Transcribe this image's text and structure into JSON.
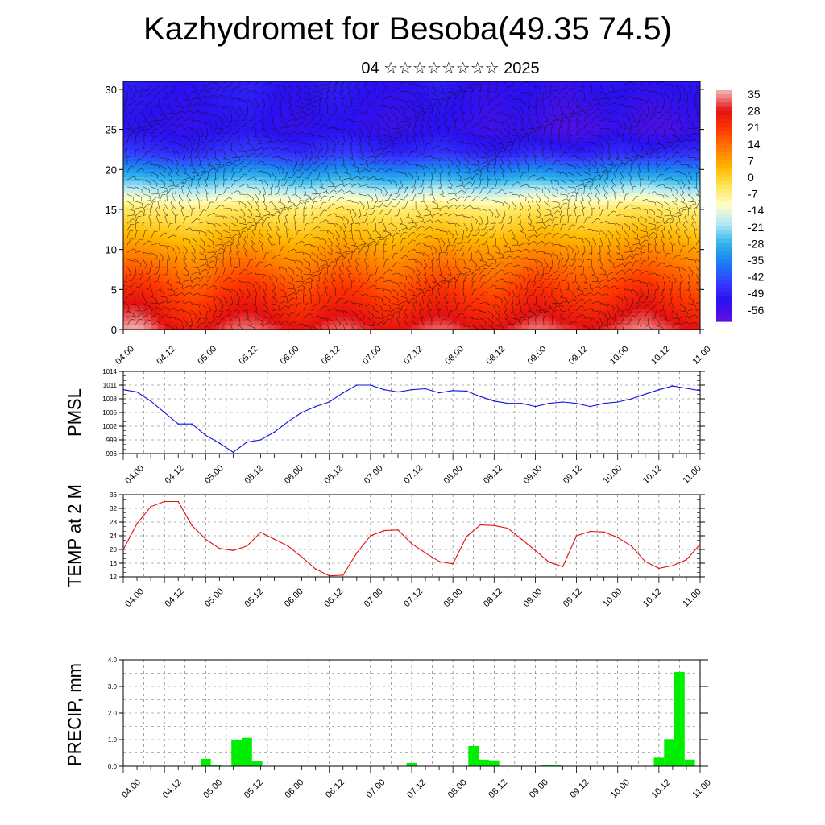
{
  "page": {
    "title": "Kazhydromet for Besoba(49.35 74.5)",
    "subtitle": "04 ☆☆☆☆☆☆☆☆ 2025"
  },
  "chart_data": [
    {
      "type": "heatmap",
      "title": "",
      "x_tick_labels": [
        "04.00",
        "04.12",
        "05.00",
        "05.12",
        "06.00",
        "06.12",
        "07.00",
        "07.12",
        "08.00",
        "08.12",
        "09.00",
        "09.12",
        "10.00",
        "10.12",
        "11.00"
      ],
      "x_range": [
        0,
        168
      ],
      "y_ticks": [
        0,
        5,
        10,
        15,
        20,
        25,
        30
      ],
      "y_range": [
        0,
        31
      ],
      "colorbar_labels": [
        "35",
        "28",
        "21",
        "14",
        "7",
        "0",
        "-7",
        "-14",
        "-21",
        "-28",
        "-35",
        "-42",
        "-49",
        "-56"
      ],
      "colorbar_stops": [
        "#f2a9a9",
        "#e51010",
        "#ff3a00",
        "#ff7a00",
        "#ffb800",
        "#ffe65a",
        "#ffffc8",
        "#aee8f5",
        "#2fb4ec",
        "#1a7ff2",
        "#3540ff",
        "#2a10f0",
        "#5a10e0"
      ],
      "wind_barbs": "shown",
      "temperature_field": [
        {
          "level": 1,
          "values": [
            32,
            33,
            30,
            26,
            24,
            22,
            24,
            27,
            29,
            30,
            29,
            27,
            25,
            24,
            26,
            28,
            29,
            28,
            26,
            24,
            24,
            26,
            28,
            29,
            28,
            26,
            25,
            24,
            26,
            28,
            30,
            29,
            27,
            26,
            25,
            26,
            28,
            30,
            31,
            29,
            27,
            25,
            24
          ]
        },
        {
          "level": 5,
          "values": [
            22,
            23,
            22,
            19,
            17,
            15,
            16,
            19,
            21,
            22,
            21,
            19,
            17,
            16,
            18,
            20,
            21,
            20,
            18,
            16,
            16,
            18,
            20,
            21,
            20,
            18,
            17,
            16,
            18,
            20,
            22,
            21,
            19,
            18,
            17,
            18,
            20,
            22,
            23,
            21,
            19,
            17,
            16
          ]
        },
        {
          "level": 10,
          "values": [
            9,
            9,
            8,
            7,
            6,
            5,
            6,
            8,
            9,
            9,
            8,
            7,
            6,
            6,
            7,
            8,
            9,
            8,
            7,
            6,
            6,
            7,
            8,
            9,
            8,
            7,
            7,
            6,
            7,
            8,
            9,
            9,
            8,
            7,
            7,
            7,
            8,
            9,
            10,
            9,
            8,
            7,
            6
          ]
        },
        {
          "level": 15,
          "values": [
            -5,
            -5,
            -6,
            -6,
            -7,
            -7,
            -6,
            -5,
            -5,
            -4,
            -5,
            -6,
            -6,
            -7,
            -6,
            -5,
            -4,
            -5,
            -6,
            -6,
            -7,
            -6,
            -5,
            -4,
            -5,
            -6,
            -6,
            -7,
            -6,
            -5,
            -4,
            -5,
            -5,
            -6,
            -6,
            -6,
            -5,
            -4,
            -4,
            -5,
            -6,
            -6,
            -7
          ]
        },
        {
          "level": 18,
          "values": [
            -22,
            -22,
            -23,
            -24,
            -24,
            -25,
            -24,
            -23,
            -22,
            -21,
            -22,
            -23,
            -24,
            -25,
            -24,
            -23,
            -22,
            -23,
            -24,
            -25,
            -25,
            -24,
            -23,
            -22,
            -23,
            -24,
            -25,
            -25,
            -24,
            -23,
            -22,
            -23,
            -24,
            -24,
            -25,
            -24,
            -23,
            -22,
            -22,
            -23,
            -24,
            -25,
            -25
          ]
        },
        {
          "level": 22,
          "values": [
            -44,
            -45,
            -46,
            -47,
            -48,
            -48,
            -47,
            -46,
            -45,
            -44,
            -45,
            -46,
            -47,
            -48,
            -47,
            -46,
            -45,
            -46,
            -47,
            -48,
            -49,
            -48,
            -47,
            -46,
            -47,
            -48,
            -49,
            -50,
            -49,
            -48,
            -47,
            -48,
            -49,
            -50,
            -49,
            -48,
            -47,
            -48,
            -49,
            -48,
            -47,
            -47,
            -47
          ]
        },
        {
          "level": 25,
          "values": [
            -52,
            -52,
            -53,
            -53,
            -54,
            -54,
            -53,
            -52,
            -52,
            -51,
            -52,
            -53,
            -54,
            -54,
            -53,
            -52,
            -52,
            -53,
            -54,
            -55,
            -55,
            -54,
            -53,
            -52,
            -53,
            -54,
            -55,
            -56,
            -55,
            -54,
            -55,
            -57,
            -58,
            -58,
            -57,
            -55,
            -54,
            -55,
            -57,
            -58,
            -57,
            -55,
            -54
          ]
        },
        {
          "level": 31,
          "values": [
            -50,
            -50,
            -51,
            -51,
            -52,
            -52,
            -51,
            -50,
            -50,
            -49,
            -50,
            -51,
            -52,
            -52,
            -51,
            -50,
            -50,
            -51,
            -52,
            -52,
            -53,
            -52,
            -51,
            -50,
            -51,
            -52,
            -53,
            -53,
            -52,
            -51,
            -52,
            -53,
            -54,
            -53,
            -52,
            -51,
            -51,
            -52,
            -53,
            -52,
            -51,
            -51,
            -51
          ]
        }
      ]
    },
    {
      "type": "line",
      "ylabel": "PMSL",
      "x_tick_labels": [
        "04.00",
        "04.12",
        "05.00",
        "05.12",
        "06.00",
        "06.12",
        "07.00",
        "07.12",
        "08.00",
        "08.12",
        "09.00",
        "09.12",
        "10.00",
        "10.12",
        "11.00"
      ],
      "x_range": [
        0,
        168
      ],
      "y_range": [
        996,
        1014
      ],
      "y_ticks": [
        996,
        999,
        1002,
        1005,
        1008,
        1011,
        1014
      ],
      "color": "#1010e0",
      "x": [
        0,
        4,
        8,
        12,
        16,
        20,
        24,
        28,
        32,
        36,
        40,
        44,
        48,
        52,
        56,
        60,
        64,
        68,
        72,
        76,
        80,
        84,
        88,
        92,
        96,
        100,
        104,
        108,
        112,
        116,
        120,
        124,
        128,
        132,
        136,
        140,
        144,
        148,
        152,
        156,
        160,
        164,
        168
      ],
      "values": [
        1010,
        1009.5,
        1007.5,
        1005,
        1002.5,
        1002.5,
        1000,
        998.3,
        996.3,
        998.5,
        999,
        1000.7,
        1003,
        1005,
        1006.3,
        1007.3,
        1009.3,
        1011,
        1011,
        1010,
        1009.5,
        1010,
        1010.2,
        1009.3,
        1009.8,
        1009.7,
        1008.5,
        1007.5,
        1007,
        1007,
        1006.3,
        1007,
        1007.3,
        1007,
        1006.3,
        1007,
        1007.3,
        1008,
        1009,
        1010,
        1010.8,
        1010.3,
        1009.8
      ]
    },
    {
      "type": "line",
      "ylabel": "TEMP at 2 M",
      "x_tick_labels": [
        "04.00",
        "04.12",
        "05.00",
        "05.12",
        "06.00",
        "06.12",
        "07.00",
        "07.12",
        "08.00",
        "08.12",
        "09.00",
        "09.12",
        "10.00",
        "10.12",
        "11.00"
      ],
      "x_range": [
        0,
        168
      ],
      "y_range": [
        12,
        36
      ],
      "y_ticks": [
        12,
        16,
        20,
        24,
        28,
        32,
        36
      ],
      "color": "#e01010",
      "x": [
        0,
        4,
        8,
        12,
        16,
        20,
        24,
        28,
        32,
        36,
        40,
        44,
        48,
        52,
        56,
        60,
        64,
        68,
        72,
        76,
        80,
        84,
        88,
        92,
        96,
        100,
        104,
        108,
        112,
        116,
        120,
        124,
        128,
        132,
        136,
        140,
        144,
        148,
        152,
        156,
        160,
        164,
        168
      ],
      "values": [
        20,
        27.5,
        32.5,
        34,
        34,
        27,
        23,
        20.3,
        19.7,
        21,
        25,
        23,
        21,
        17.8,
        14.3,
        12.3,
        12.5,
        19,
        24,
        25.5,
        25.7,
        21.7,
        19,
        16.5,
        15.8,
        23.8,
        27.2,
        27,
        26.2,
        23,
        19.7,
        16.3,
        15,
        24,
        25.3,
        25.1,
        23.5,
        21,
        16.5,
        14.5,
        15.3,
        17,
        21.5
      ]
    },
    {
      "type": "bar",
      "ylabel": "PRECIP, mm",
      "x_tick_labels": [
        "04.00",
        "04.12",
        "05.00",
        "05.12",
        "06.00",
        "06.12",
        "07.00",
        "07.12",
        "08.00",
        "08.12",
        "09.00",
        "09.12",
        "10.00",
        "10.12",
        "11.00"
      ],
      "x_range": [
        0,
        168
      ],
      "y_range": [
        0,
        4.0
      ],
      "y_tick_labels": [
        "0.0",
        "1.0",
        "2.0",
        "3.0",
        "4.0"
      ],
      "color": "#00ee00",
      "x": [
        24,
        27,
        33,
        36,
        39,
        84,
        102,
        105,
        108,
        123,
        126,
        156,
        159,
        162,
        165
      ],
      "values": [
        0.28,
        0.06,
        1.0,
        1.07,
        0.18,
        0.12,
        0.76,
        0.25,
        0.22,
        0.05,
        0.06,
        0.32,
        1.02,
        3.55,
        0.25
      ]
    }
  ]
}
